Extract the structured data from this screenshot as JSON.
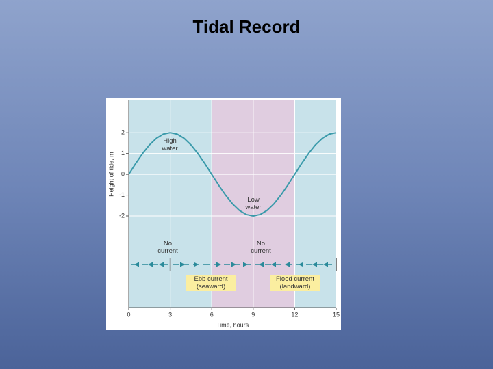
{
  "title": "Tidal Record",
  "chart_data": {
    "type": "line",
    "x_label": "Time, hours",
    "y_label": "Height of tide, m",
    "x": [
      0,
      0.5,
      1,
      1.5,
      2,
      2.5,
      3,
      3.5,
      4,
      4.5,
      5,
      5.5,
      6,
      6.5,
      7,
      7.5,
      8,
      8.5,
      9,
      9.5,
      10,
      10.5,
      11,
      11.5,
      12,
      12.5,
      13,
      13.5,
      14,
      14.5,
      15
    ],
    "series": [
      {
        "color": "#3a9aaa",
        "values": [
          0,
          0.518,
          1,
          1.414,
          1.732,
          1.932,
          2,
          1.932,
          1.732,
          1.414,
          1,
          0.518,
          0,
          -0.518,
          -1,
          -1.414,
          -1.732,
          -1.932,
          -2,
          -1.932,
          -1.732,
          -1.414,
          -1,
          -0.518,
          0,
          0.518,
          1,
          1.414,
          1.732,
          1.932,
          2
        ]
      }
    ],
    "xlim": [
      0,
      15
    ],
    "xticks": [
      0,
      3,
      6,
      9,
      12,
      15
    ],
    "ylim": [
      -6.4,
      3.55
    ],
    "yticks": [
      -2,
      -1,
      0,
      1,
      2
    ],
    "grid": true,
    "shaded_span": [
      6,
      12
    ],
    "annotations": [
      "High water",
      "Low water",
      "No current",
      "No current",
      "Ebb current (seaward)",
      "Flood current (landward)"
    ]
  }
}
